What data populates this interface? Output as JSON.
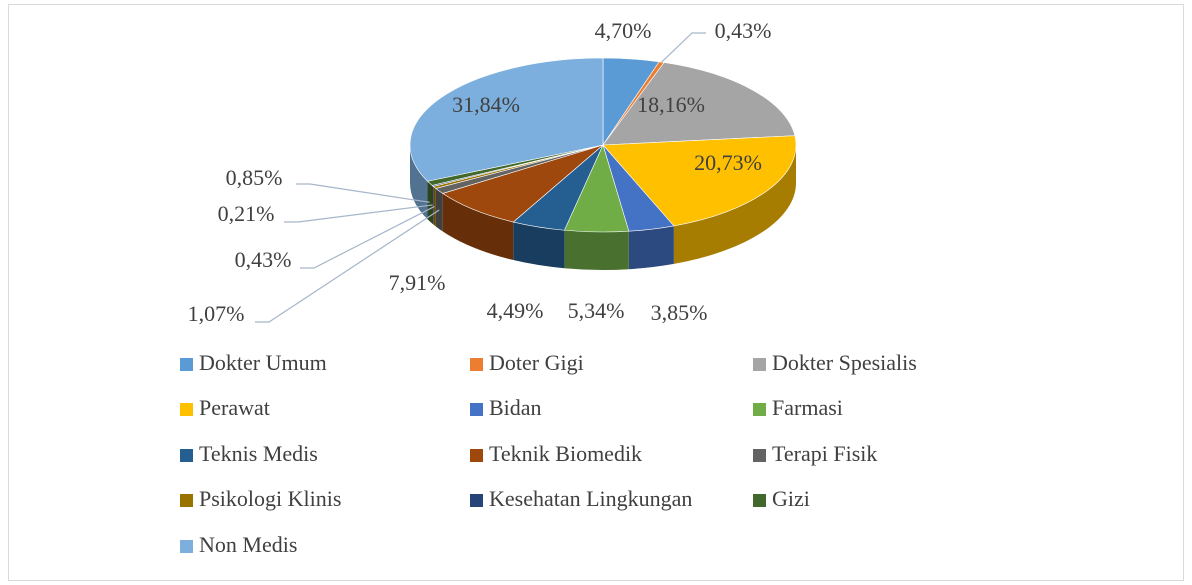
{
  "chart_data": {
    "type": "pie",
    "categories": [
      "Dokter Umum",
      "Doter Gigi",
      "Dokter Spesialis",
      "Perawat",
      "Bidan",
      "Farmasi",
      "Teknis Medis",
      "Teknik Biomedik",
      "Terapi Fisik",
      "Psikologi Klinis",
      "Kesehatan Lingkungan",
      "Gizi",
      "Non Medis"
    ],
    "values": [
      4.7,
      0.43,
      18.16,
      20.73,
      3.85,
      5.34,
      4.49,
      7.91,
      1.07,
      0.43,
      0.21,
      0.85,
      31.84
    ],
    "value_labels": [
      "4,70%",
      "0,43%",
      "18,16%",
      "20,73%",
      "3,85%",
      "5,34%",
      "4,49%",
      "7,91%",
      "1,07%",
      "0,43%",
      "0,21%",
      "0,85%",
      "31,84%"
    ],
    "colors": [
      "#5b9bd5",
      "#ed7d31",
      "#a5a5a5",
      "#ffc000",
      "#4472c4",
      "#70ad47",
      "#255e91",
      "#9e480e",
      "#636363",
      "#997300",
      "#264478",
      "#43682b",
      "#7cafdd"
    ],
    "legend": "bottom"
  }
}
